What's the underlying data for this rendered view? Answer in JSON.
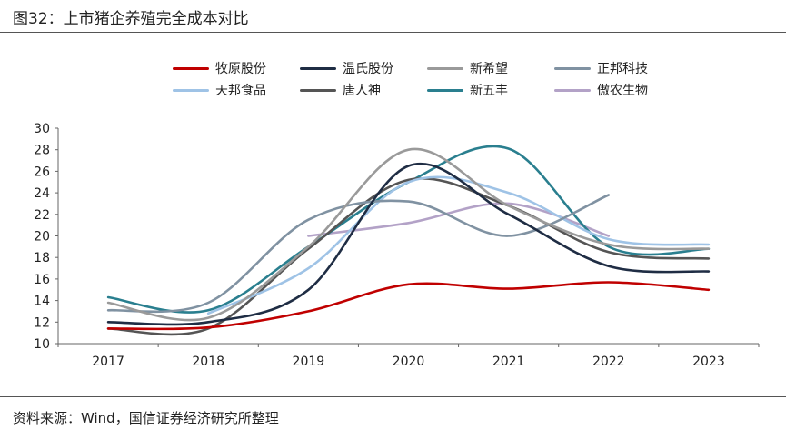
{
  "page": {
    "figure_title": "图32：上市猪企养殖完全成本对比",
    "source": "资料来源：Wind，国信证券经济研究所整理"
  },
  "chart_data": {
    "type": "line",
    "title": "",
    "xlabel": "",
    "ylabel": "",
    "categories": [
      "2017",
      "2018",
      "2019",
      "2020",
      "2021",
      "2022",
      "2023"
    ],
    "ylim": [
      10,
      30
    ],
    "yticks": [
      10,
      12,
      14,
      16,
      18,
      20,
      22,
      24,
      26,
      28,
      30
    ],
    "grid": false,
    "legend_position": "top",
    "smooth": true,
    "series": [
      {
        "name": "牧原股份",
        "color": "#c00000",
        "values": [
          11.4,
          11.5,
          13.0,
          15.5,
          15.1,
          15.7,
          15.0
        ]
      },
      {
        "name": "温氏股份",
        "color": "#1f2d44",
        "values": [
          12.0,
          12.0,
          15.0,
          26.5,
          22.0,
          17.2,
          16.7
        ]
      },
      {
        "name": "新希望",
        "color": "#9a9a9a",
        "values": [
          13.8,
          12.4,
          19.0,
          28.0,
          22.8,
          19.2,
          18.8
        ]
      },
      {
        "name": "正邦科技",
        "color": "#8092a2",
        "values": [
          13.1,
          13.8,
          21.5,
          23.2,
          20.0,
          23.8,
          null
        ]
      },
      {
        "name": "天邦食品",
        "color": "#9fc3e6",
        "values": [
          null,
          12.8,
          17.0,
          25.0,
          24.0,
          19.7,
          19.2
        ]
      },
      {
        "name": "唐人神",
        "color": "#555555",
        "values": [
          11.4,
          11.4,
          18.8,
          25.2,
          22.8,
          18.5,
          17.9
        ]
      },
      {
        "name": "新五丰",
        "color": "#2a7f8f",
        "values": [
          14.3,
          13.1,
          19.0,
          25.0,
          28.1,
          19.0,
          18.8
        ]
      },
      {
        "name": "傲农生物",
        "color": "#b3a2c7",
        "values": [
          null,
          null,
          20.0,
          21.2,
          23.0,
          20.0,
          null
        ]
      }
    ]
  }
}
